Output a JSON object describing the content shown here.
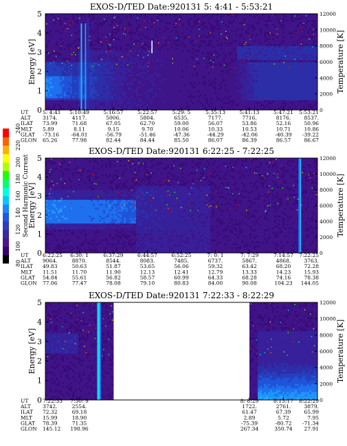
{
  "colorbar": {
    "label": "Second Harmonic Current",
    "ticks": [
      "80",
      "100",
      "120",
      "140",
      "160",
      "180",
      "200",
      "220",
      "240"
    ],
    "colors": [
      "#000000",
      "#3a0070",
      "#4a1890",
      "#3a2aa0",
      "#2f3ec0",
      "#1f58e6",
      "#1a86ff",
      "#00c8ff",
      "#00ffe0",
      "#00ff70",
      "#20ff00",
      "#b0ff00",
      "#ffff00",
      "#ffb000",
      "#ff6000",
      "#ff0000"
    ]
  },
  "chart_data": [
    {
      "type": "heatmap",
      "title": "EXOS-D/TED   Date:920131  5: 4:41 - 5:53:21",
      "ylabel": "Energy [eV]",
      "y2label": "Temperature [K]",
      "ylim": [
        0,
        5
      ],
      "y2lim": [
        0,
        12000
      ],
      "yticks": [
        "0",
        "1",
        "2",
        "3",
        "4",
        "5"
      ],
      "y2ticks": [
        "0",
        "2000",
        "4000",
        "6000",
        "8000",
        "10000",
        "12000"
      ],
      "coverage": [
        [
          0,
          100
        ]
      ],
      "row_labels": [
        "UT",
        "ALT",
        "ILAT",
        "MLT",
        "GLAT",
        "GLON"
      ],
      "columns": [
        [
          "5: 4:41",
          "3174.",
          "73.99",
          "5.89",
          "-73.16",
          "65.26"
        ],
        [
          "5:10:49",
          "4117.",
          "71.68",
          "8.11",
          "-64.01",
          "77.98"
        ],
        [
          "5:16:57",
          "5006.",
          "67.05",
          "9.15",
          "-56.79",
          "82.44"
        ],
        [
          "5:22:57",
          "5804.",
          "62.70",
          "9.70",
          "-51.46",
          "84.44"
        ],
        [
          "5:29: 5",
          "6535.",
          "59.00",
          "10.06",
          "-47.36",
          "85.50"
        ],
        [
          "5:35:13",
          "7177.",
          "56.07",
          "10.33",
          "-44.29",
          "86.07"
        ],
        [
          "5:41:13",
          "7716.",
          "53.86",
          "10.53",
          "-42.06",
          "86.39"
        ],
        [
          "5:47:21",
          "8176.",
          "52.16",
          "10.71",
          "-40.39",
          "86.57"
        ],
        [
          "5:53:21",
          "8537.",
          "50.96",
          "10.86",
          "-39.22",
          "86.67"
        ]
      ]
    },
    {
      "type": "heatmap",
      "title": "EXOS-D/TED   Date:920131  6:22:25 - 7:22:25",
      "ylabel": "Energy [eV]",
      "y2label": "Temperature [K]",
      "ylim": [
        0,
        5
      ],
      "y2lim": [
        0,
        12000
      ],
      "yticks": [
        "0",
        "1",
        "2",
        "3",
        "4",
        "5"
      ],
      "y2ticks": [
        "0",
        "2000",
        "4000",
        "6000",
        "8000",
        "10000",
        "12000"
      ],
      "coverage": [
        [
          0,
          100
        ]
      ],
      "row_labels": [
        "UT",
        "ALT",
        "ILAT",
        "MLT",
        "GLAT",
        "GLON"
      ],
      "columns": [
        [
          "6:22:25",
          "9064.",
          "49.83",
          "11.51",
          "54.84",
          "77.06"
        ],
        [
          "6:30: 1",
          "8870.",
          "50.63",
          "11.70",
          "55.61",
          "77.47"
        ],
        [
          "6:37:29",
          "8544.",
          "51.87",
          "11.90",
          "56.82",
          "78.08"
        ],
        [
          "6:44:57",
          "8083.",
          "53.65",
          "12.13",
          "58.57",
          "79.10"
        ],
        [
          "6:52:25",
          "7485.",
          "56.06",
          "12.41",
          "60.99",
          "80.83"
        ],
        [
          "7: 0: 1",
          "6737.",
          "59.32",
          "12.79",
          "64.33",
          "84.00"
        ],
        [
          "7: 7:29",
          "5867.",
          "63.42",
          "13.33",
          "68.28",
          "90.08"
        ],
        [
          "7:14:57",
          "4868.",
          "68.20",
          "14.23",
          "74.16",
          "104.23"
        ],
        [
          "7:22:25",
          "3763.",
          "72.28",
          "15.93",
          "78.38",
          "144.05"
        ]
      ]
    },
    {
      "type": "heatmap",
      "title": "EXOS-D/TED   Date:920131  7:22:33 - 8:22:29",
      "ylabel": "Energy [eV]",
      "y2label": "Temperature [K]",
      "ylim": [
        0,
        5
      ],
      "y2lim": [
        0,
        12000
      ],
      "yticks": [
        "0",
        "1",
        "2",
        "3",
        "4",
        "5"
      ],
      "y2ticks": [
        "0",
        "2000",
        "4000",
        "6000",
        "8000",
        "10000",
        "12000"
      ],
      "coverage": [
        [
          0,
          25
        ],
        [
          75,
          100
        ]
      ],
      "row_labels": [
        "UT",
        "ALT",
        "ILAT",
        "MLT",
        "GLAT",
        "GLON"
      ],
      "columns": [
        [
          "7:22:33",
          "3742.",
          "72.32",
          "15.99",
          "78.39",
          "145.12"
        ],
        [
          "7:30: 9",
          "2554.",
          "69.18",
          "18.90",
          "71.35",
          "198.96"
        ],
        [
          "8: 8:29",
          "1722.",
          "61.47",
          "2.89",
          "-75.39",
          "267.34"
        ],
        [
          "8:15:17",
          "2761.",
          "67.39",
          "5.72",
          "-80.72",
          "350.74"
        ],
        [
          "8:22:29",
          "3879.",
          "65.99",
          "7.95",
          "-71.34",
          "27.91"
        ]
      ],
      "column_positions": [
        0,
        12.5,
        75,
        87.5,
        100
      ]
    }
  ]
}
